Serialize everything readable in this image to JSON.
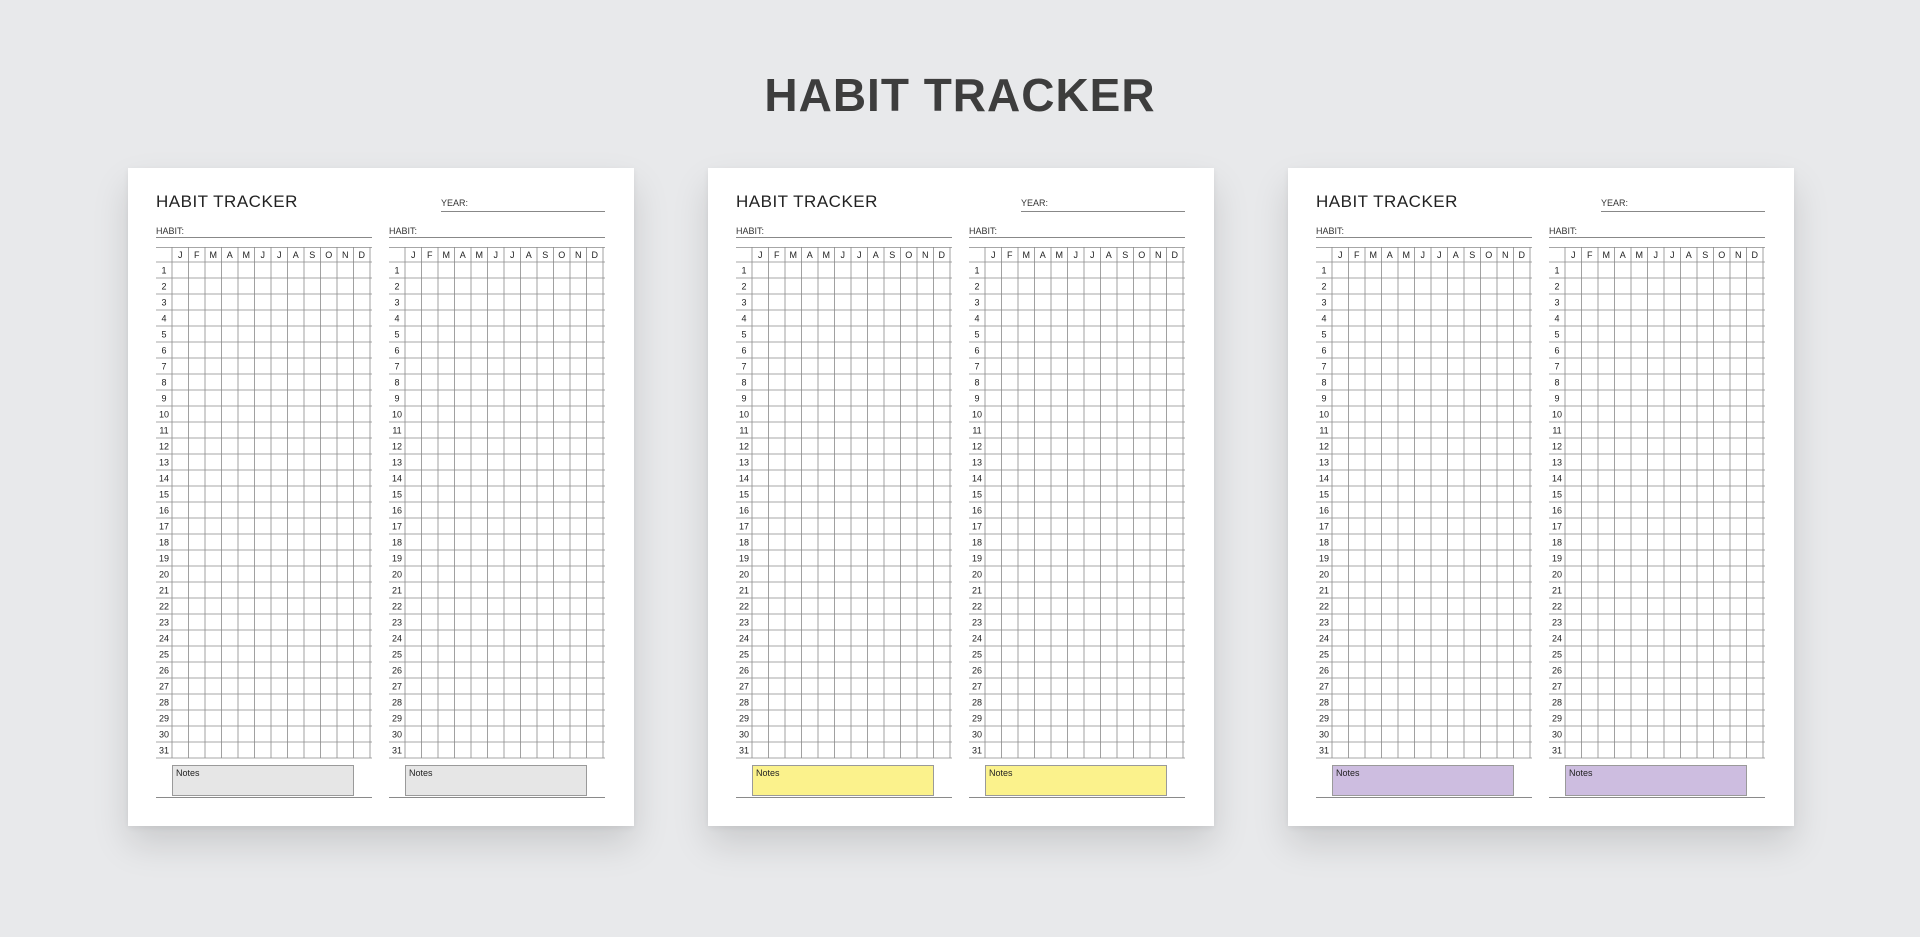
{
  "title": "HABIT TRACKER",
  "months": [
    "J",
    "F",
    "M",
    "A",
    "M",
    "J",
    "J",
    "A",
    "S",
    "O",
    "N",
    "D"
  ],
  "days": [
    "1",
    "2",
    "3",
    "4",
    "5",
    "6",
    "7",
    "8",
    "9",
    "10",
    "11",
    "12",
    "13",
    "14",
    "15",
    "16",
    "17",
    "18",
    "19",
    "20",
    "21",
    "22",
    "23",
    "24",
    "25",
    "26",
    "27",
    "28",
    "29",
    "30",
    "31"
  ],
  "pages": [
    {
      "title": "HABIT TRACKER",
      "year_label": "YEAR:",
      "notes_color": "#e6e6e6",
      "trackers": [
        {
          "habit_label": "HABIT:",
          "notes_label": "Notes"
        },
        {
          "habit_label": "HABIT:",
          "notes_label": "Notes"
        }
      ]
    },
    {
      "title": "HABIT TRACKER",
      "year_label": "YEAR:",
      "notes_color": "#fbf28c",
      "trackers": [
        {
          "habit_label": "HABIT:",
          "notes_label": "Notes"
        },
        {
          "habit_label": "HABIT:",
          "notes_label": "Notes"
        }
      ]
    },
    {
      "title": "HABIT TRACKER",
      "year_label": "YEAR:",
      "notes_color": "#cdbde0",
      "trackers": [
        {
          "habit_label": "HABIT:",
          "notes_label": "Notes"
        },
        {
          "habit_label": "HABIT:",
          "notes_label": "Notes"
        }
      ]
    }
  ]
}
